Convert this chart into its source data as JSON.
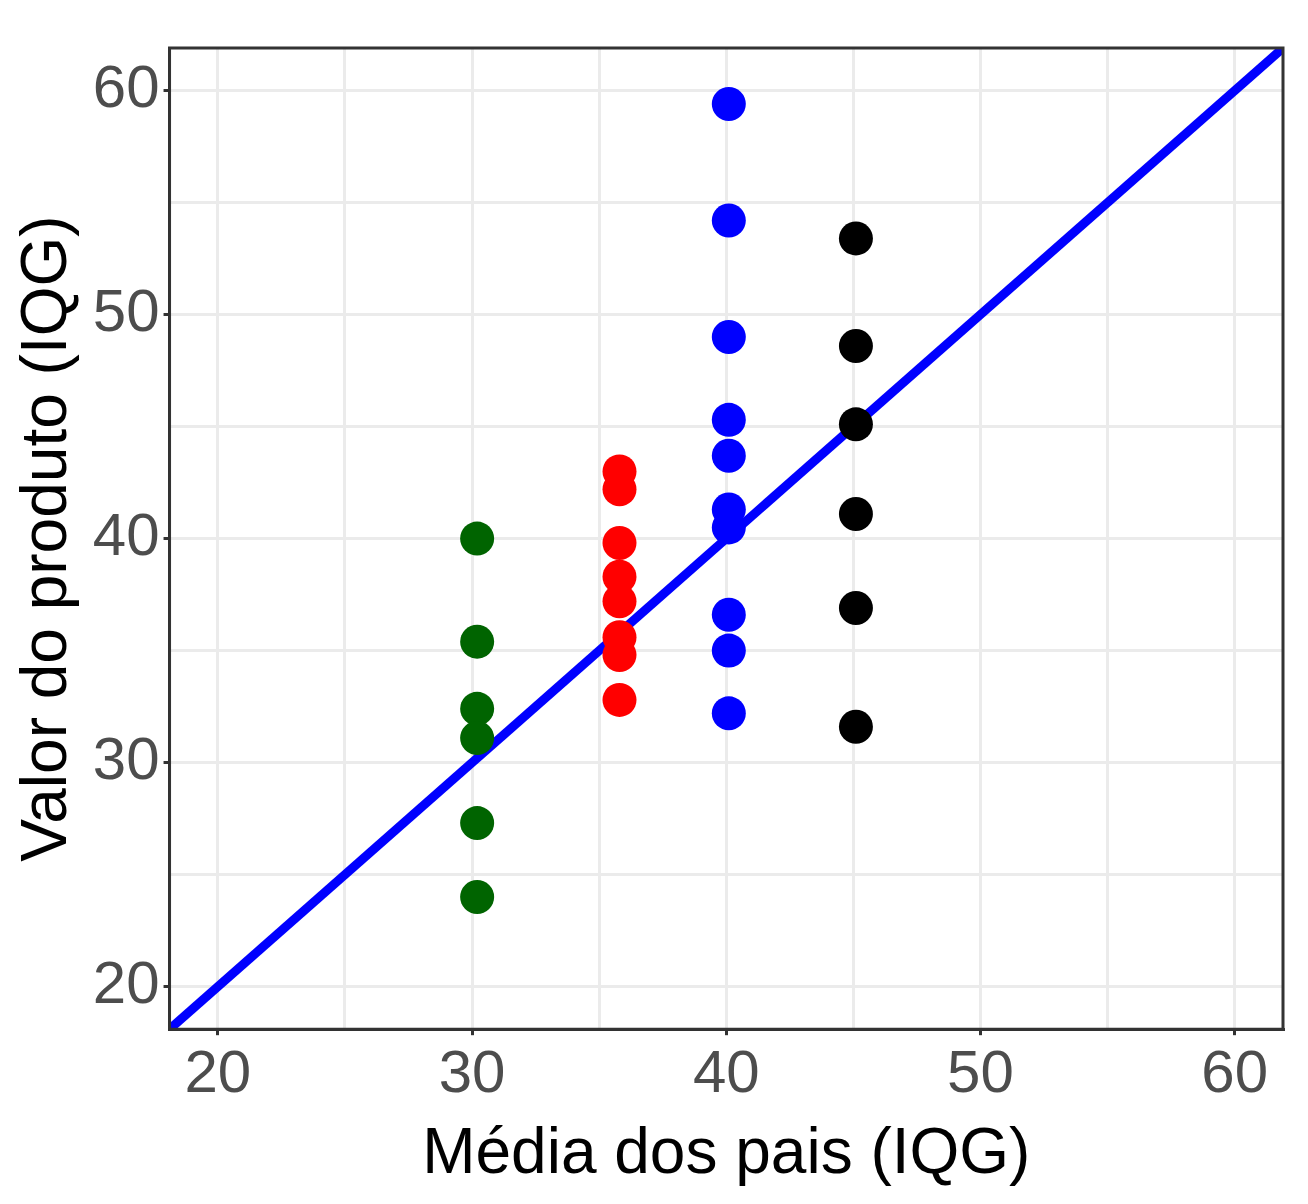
{
  "chart_data": {
    "type": "scatter",
    "xlabel": "Média dos pais (IQG)",
    "ylabel": "Valor do produto (IQG)",
    "xlim": [
      18.1,
      61.9
    ],
    "ylim": [
      18.1,
      61.9
    ],
    "xticks": [
      20,
      {
        "value": 25,
        "label": null
      },
      30,
      {
        "value": 35,
        "label": null
      },
      40,
      {
        "value": 45,
        "label": null
      },
      50,
      {
        "value": 55,
        "label": null
      },
      60
    ],
    "yticks": [
      20,
      {
        "value": 25,
        "label": null
      },
      30,
      {
        "value": 35,
        "label": null
      },
      40,
      {
        "value": 45,
        "label": null
      },
      50,
      {
        "value": 55,
        "label": null
      },
      60
    ],
    "grid": true,
    "legend": false,
    "marker": "circle",
    "series": [
      {
        "color": "#006400",
        "x": [
          30.2,
          30.2,
          30.2,
          30.2,
          30.2,
          30.2
        ],
        "values": [
          40.0,
          35.4,
          32.4,
          31.1,
          27.3,
          24.0
        ]
      },
      {
        "color": "#ff0000",
        "x": [
          35.8,
          35.8,
          35.8,
          35.8,
          35.8,
          35.8,
          35.8,
          35.8
        ],
        "values": [
          43.0,
          42.2,
          39.8,
          38.3,
          37.2,
          35.6,
          34.8,
          32.8
        ]
      },
      {
        "color": "#0000ff",
        "x": [
          40.1,
          40.1,
          40.1,
          40.1,
          40.1,
          40.1,
          40.1,
          40.1,
          40.1,
          40.1
        ],
        "values": [
          59.4,
          54.2,
          49.0,
          45.3,
          43.7,
          41.3,
          40.5,
          36.6,
          35.0,
          32.2
        ]
      },
      {
        "color": "#000000",
        "x": [
          45.1,
          45.1,
          45.1,
          45.1,
          45.1,
          45.1
        ],
        "values": [
          53.4,
          48.6,
          45.1,
          41.1,
          36.9,
          31.6
        ]
      },
      {
        "type": "line",
        "color": "#0000ff",
        "marker": "none",
        "x": [
          18.1,
          61.9
        ],
        "values": [
          18.1,
          61.9
        ]
      }
    ]
  }
}
